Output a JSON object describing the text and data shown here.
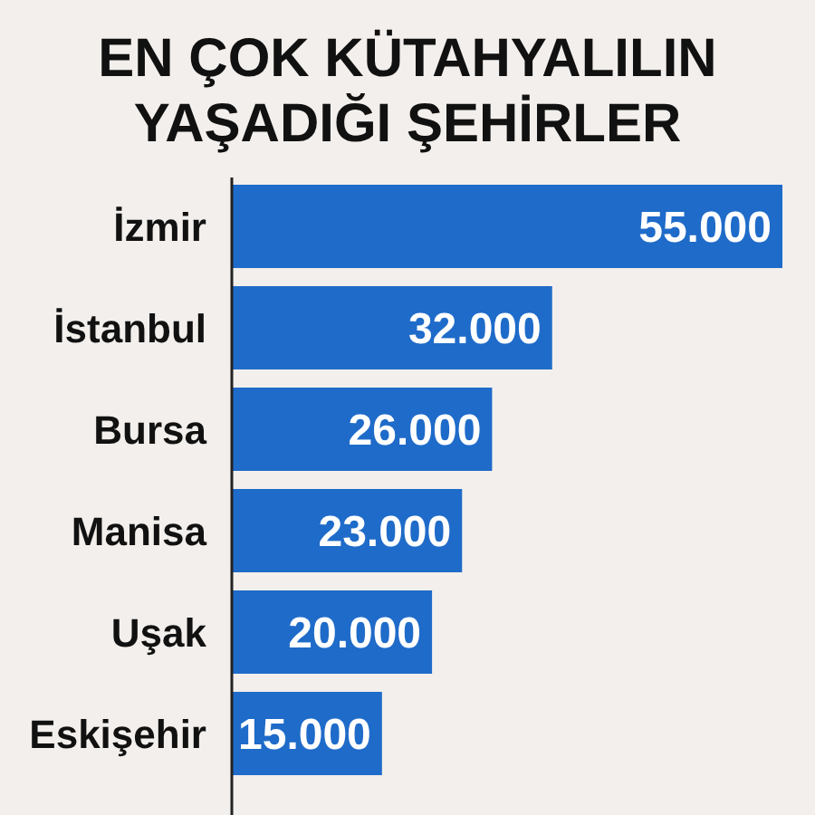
{
  "chart_data": {
    "type": "bar",
    "orientation": "horizontal",
    "title": "EN ÇOK KÜTAHYALILIN YAŞADIĞI ŞEHİRLER",
    "categories": [
      "İzmir",
      "İstanbul",
      "Bursa",
      "Manisa",
      "Uşak",
      "Eskişehir"
    ],
    "values": [
      55000,
      32000,
      26000,
      23000,
      20000,
      15000
    ],
    "value_labels": [
      "55.000",
      "32.000",
      "26.000",
      "23.000",
      "20.000",
      "15.000"
    ],
    "color": "#1f6bc9"
  }
}
